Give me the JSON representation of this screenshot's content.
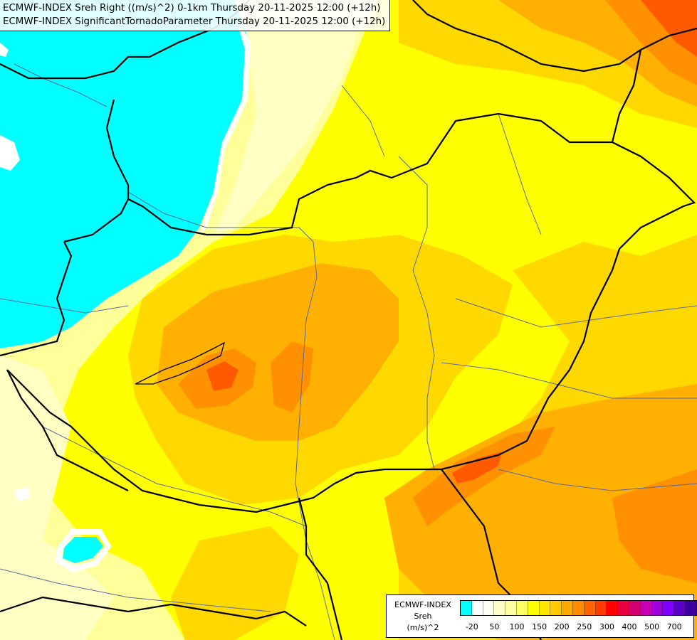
{
  "titles": {
    "line1": "ECMWF-INDEX Sreh Right ((m/s)^2) 0-1km Thursday 20-11-2025 12:00 (+12h)",
    "line2": "ECMWF-INDEX SignificantTornadoParameter Thursday 20-11-2025 12:00 (+12h)"
  },
  "legend": {
    "line1": "ECMWF-INDEX",
    "line2": "Sreh",
    "line3": "(m/s)^2",
    "colors": [
      "#00ffff",
      "#ffffff",
      "#fffff0",
      "#ffffc8",
      "#ffffa0",
      "#ffff64",
      "#ffff00",
      "#ffe600",
      "#ffc800",
      "#ffaa00",
      "#ff8c00",
      "#ff6400",
      "#ff3c00",
      "#ff0000",
      "#e6003c",
      "#d2006e",
      "#c800b4",
      "#a000dc",
      "#8000ff",
      "#5a00c8",
      "#3c00a0",
      "#140078"
    ],
    "ticks": [
      "-20",
      "50",
      "100",
      "150",
      "200",
      "250",
      "300",
      "400",
      "500",
      "700"
    ]
  },
  "map_colors": {
    "cyan": "#00ffff",
    "white": "#ffffff",
    "pale": "#ffffc4",
    "light_yellow": "#ffff9a",
    "yellow": "#ffff00",
    "gold": "#ffd800",
    "amber": "#ffb000",
    "orange": "#ff9000",
    "dark_orange": "#ff6a00",
    "red_orange": "#ff3c00",
    "border": "#000000",
    "river": "#5a6a9a"
  }
}
